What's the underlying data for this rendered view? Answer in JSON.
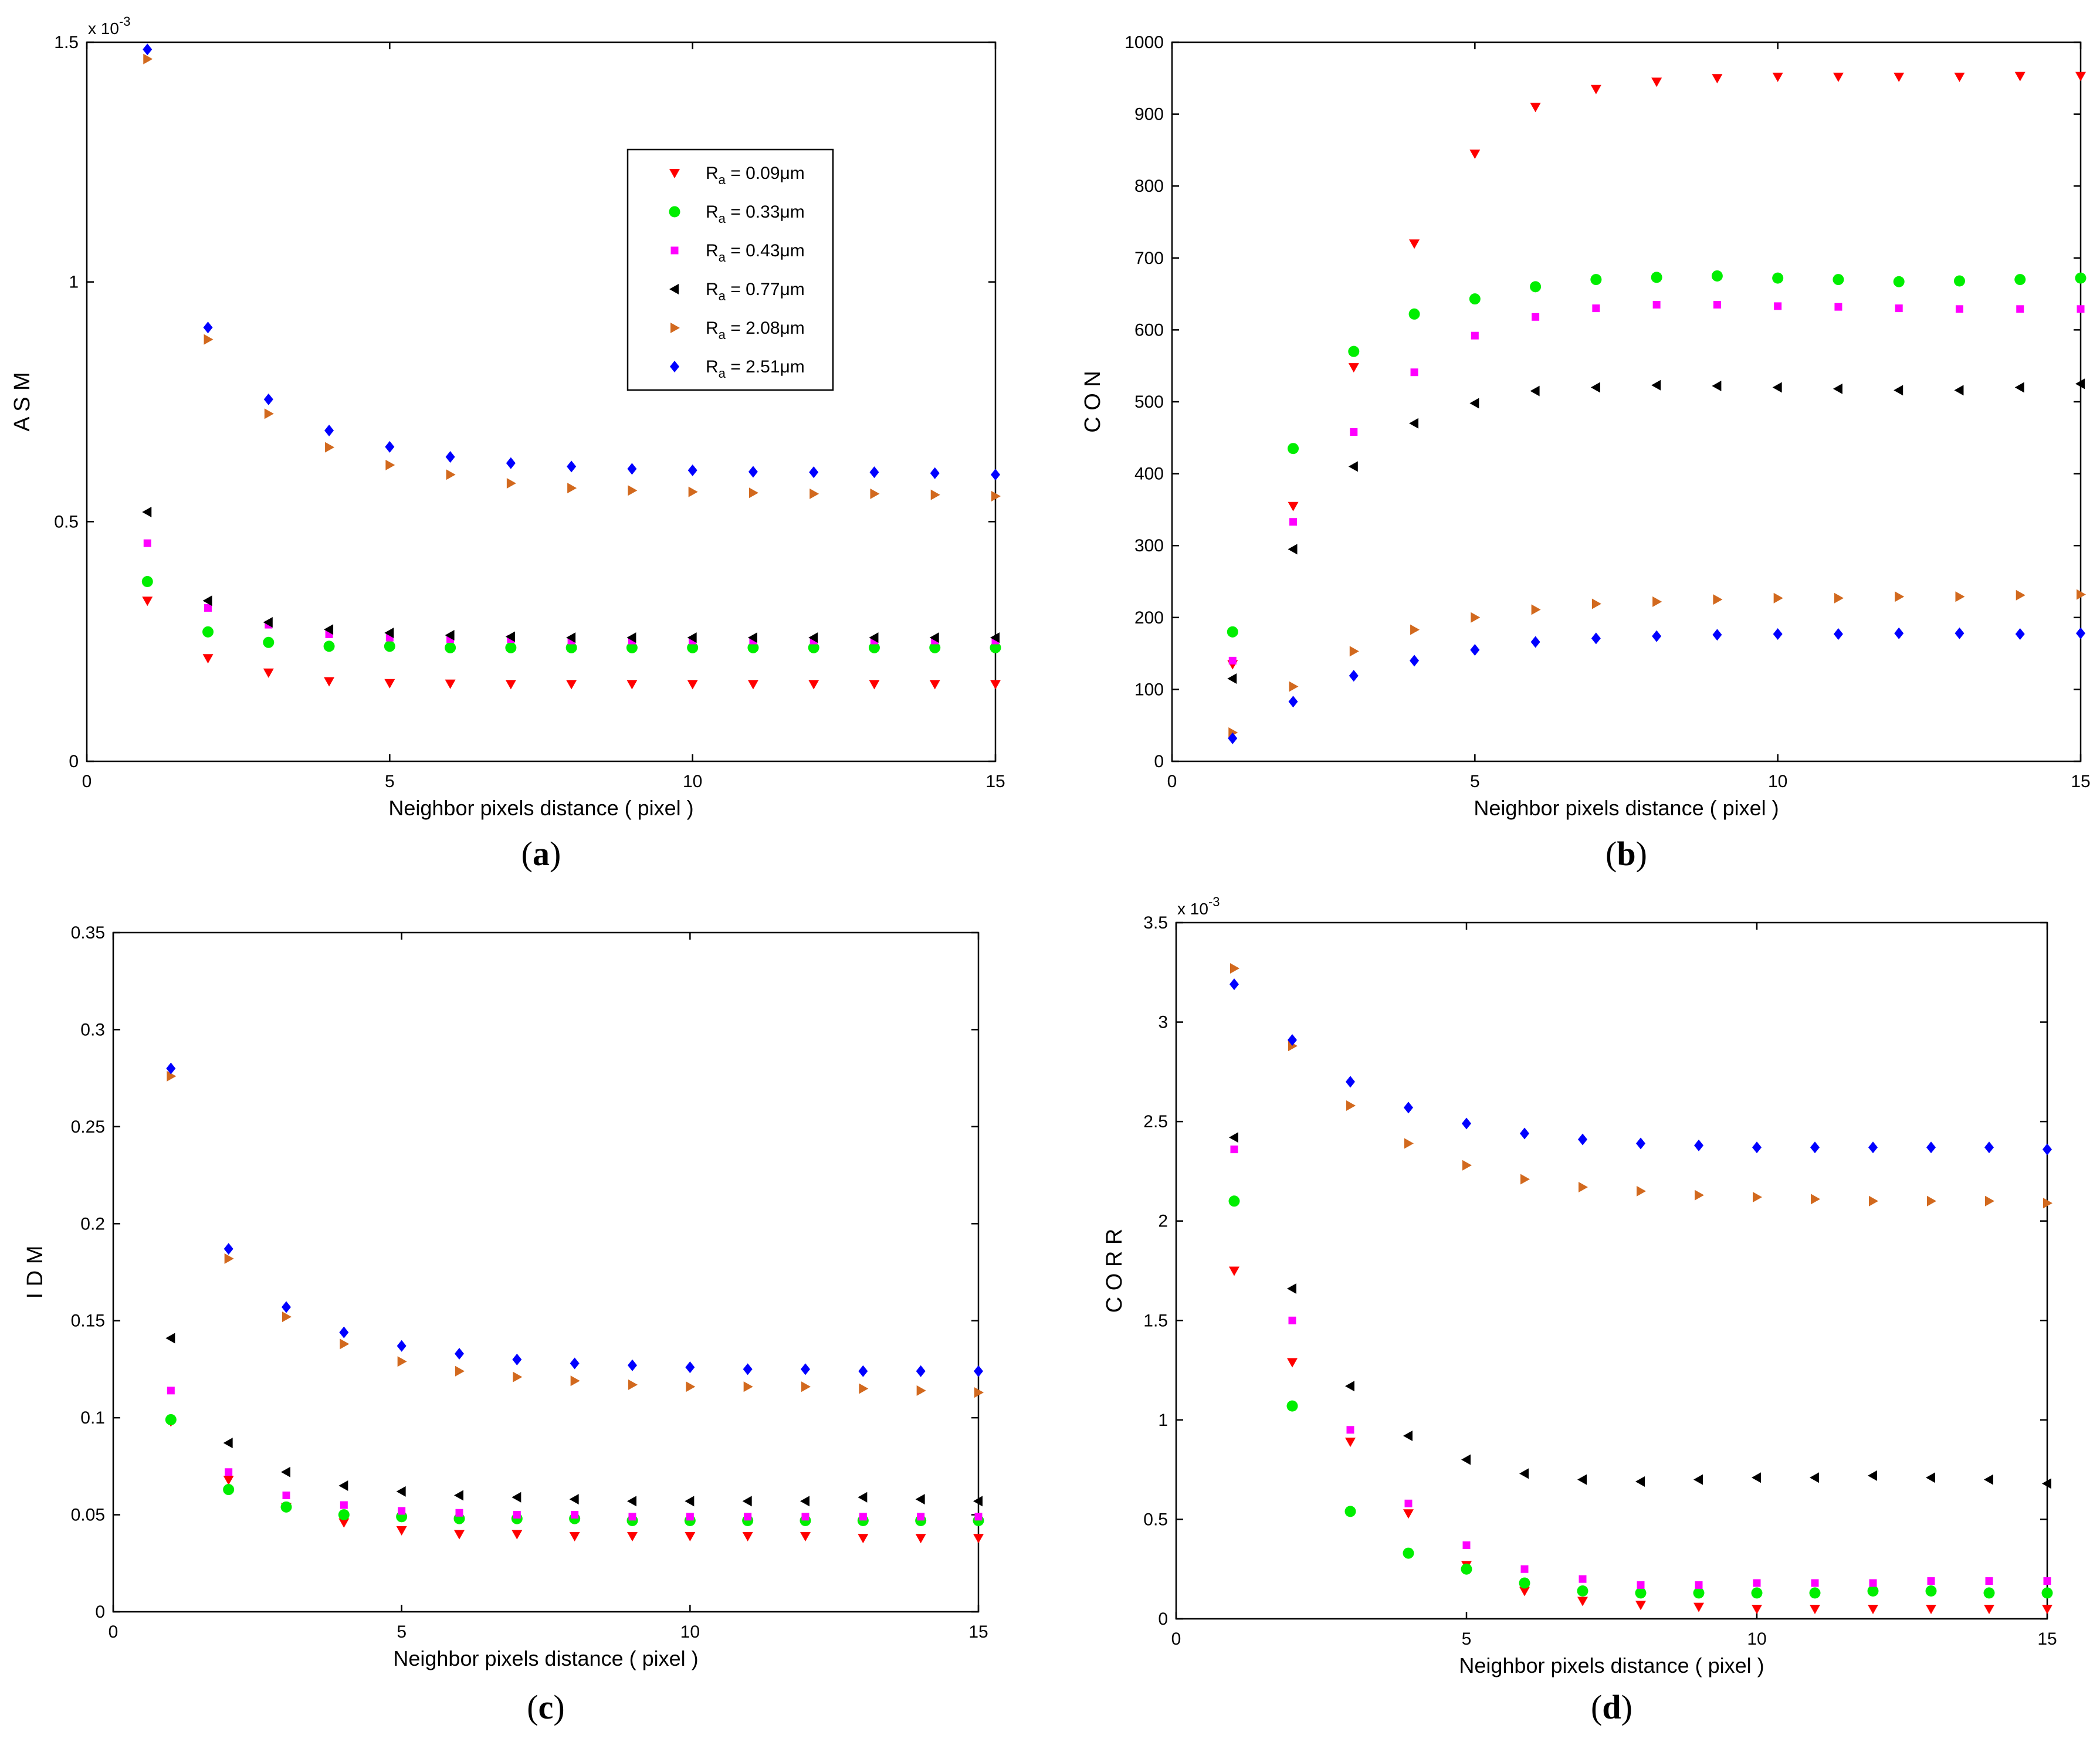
{
  "colors": {
    "Ra_0.09": "#ff0000",
    "Ra_0.33": "#00ee00",
    "Ra_0.43": "#ff00ff",
    "Ra_0.77": "#000000",
    "Ra_2.08": "#d2691e",
    "Ra_2.51": "#0000ff"
  },
  "chart_data": [
    {
      "id": "a",
      "type": "scatter",
      "panel_label": "a",
      "xlabel": "Neighbor pixels distance ( pixel )",
      "ylabel": "A S M",
      "exponent_label": "x 10",
      "exponent": "-3",
      "xlim": [
        0,
        15
      ],
      "ylim": [
        0,
        1.5
      ],
      "xticks": [
        "0",
        "5",
        "10",
        "15"
      ],
      "yticks": [
        "0",
        "0.5",
        "1",
        "1.5"
      ],
      "x": [
        1,
        2,
        3,
        4,
        5,
        6,
        7,
        8,
        9,
        10,
        11,
        12,
        13,
        14,
        15
      ],
      "legend": {
        "position": "upper-right",
        "entries": [
          {
            "prefix": "R",
            "sub": "a",
            "value": " = 0.09",
            "unit": "μm"
          },
          {
            "prefix": "R",
            "sub": "a",
            "value": " = 0.33",
            "unit": "μm"
          },
          {
            "prefix": "R",
            "sub": "a",
            "value": " = 0.43",
            "unit": "μm"
          },
          {
            "prefix": "R",
            "sub": "a",
            "value": " = 0.77",
            "unit": "μm"
          },
          {
            "prefix": "R",
            "sub": "a",
            "value": " = 2.08",
            "unit": "μm"
          },
          {
            "prefix": "R",
            "sub": "a",
            "value": " = 2.51",
            "unit": "μm"
          }
        ]
      },
      "series": [
        {
          "name": "Ra = 0.09μm",
          "marker": "triangle-down",
          "color": "#ff0000",
          "values": [
            0.335,
            0.215,
            0.185,
            0.167,
            0.163,
            0.162,
            0.161,
            0.161,
            0.161,
            0.161,
            0.161,
            0.161,
            0.161,
            0.161,
            0.161
          ]
        },
        {
          "name": "Ra = 0.33μm",
          "marker": "circle",
          "color": "#00ee00",
          "values": [
            0.375,
            0.27,
            0.248,
            0.24,
            0.24,
            0.237,
            0.237,
            0.237,
            0.237,
            0.237,
            0.237,
            0.237,
            0.237,
            0.237,
            0.237
          ]
        },
        {
          "name": "Ra = 0.43μm",
          "marker": "square",
          "color": "#ff00ff",
          "values": [
            0.455,
            0.32,
            0.285,
            0.265,
            0.258,
            0.255,
            0.255,
            0.252,
            0.252,
            0.252,
            0.252,
            0.252,
            0.252,
            0.252,
            0.252
          ]
        },
        {
          "name": "Ra = 0.77μm",
          "marker": "triangle-left",
          "color": "#000000",
          "values": [
            0.52,
            0.335,
            0.29,
            0.275,
            0.268,
            0.263,
            0.26,
            0.258,
            0.258,
            0.258,
            0.258,
            0.258,
            0.258,
            0.258,
            0.258
          ]
        },
        {
          "name": "Ra = 2.08μm",
          "marker": "triangle-right",
          "color": "#d2691e",
          "values": [
            1.465,
            0.88,
            0.725,
            0.655,
            0.618,
            0.598,
            0.58,
            0.57,
            0.565,
            0.562,
            0.56,
            0.558,
            0.558,
            0.556,
            0.553
          ]
        },
        {
          "name": "Ra = 2.51μm",
          "marker": "diamond",
          "color": "#0000ff",
          "values": [
            1.485,
            0.905,
            0.755,
            0.69,
            0.656,
            0.635,
            0.622,
            0.615,
            0.61,
            0.607,
            0.604,
            0.603,
            0.603,
            0.601,
            0.598
          ]
        }
      ]
    },
    {
      "id": "b",
      "type": "scatter",
      "panel_label": "b",
      "xlabel": "Neighbor pixels distance ( pixel )",
      "ylabel": "C O N",
      "xlim": [
        0,
        15
      ],
      "ylim": [
        0,
        1000
      ],
      "xticks": [
        "0",
        "5",
        "10",
        "15"
      ],
      "yticks": [
        "0",
        "100",
        "200",
        "300",
        "400",
        "500",
        "600",
        "700",
        "800",
        "900",
        "1000"
      ],
      "x": [
        1,
        2,
        3,
        4,
        5,
        6,
        7,
        8,
        9,
        10,
        11,
        12,
        13,
        14,
        15
      ],
      "series": [
        {
          "name": "Ra = 0.09μm",
          "marker": "triangle-down",
          "color": "#ff0000",
          "values": [
            135,
            355,
            548,
            720,
            845,
            910,
            935,
            945,
            950,
            952,
            952,
            952,
            952,
            953,
            953
          ]
        },
        {
          "name": "Ra = 0.33μm",
          "marker": "circle",
          "color": "#00ee00",
          "values": [
            180,
            435,
            570,
            622,
            643,
            660,
            670,
            673,
            675,
            672,
            670,
            667,
            668,
            670,
            672
          ]
        },
        {
          "name": "Ra = 0.43μm",
          "marker": "square",
          "color": "#ff00ff",
          "values": [
            140,
            333,
            458,
            541,
            592,
            618,
            630,
            635,
            635,
            633,
            632,
            630,
            629,
            629,
            629
          ]
        },
        {
          "name": "Ra = 0.77μm",
          "marker": "triangle-left",
          "color": "#000000",
          "values": [
            115,
            295,
            410,
            470,
            498,
            515,
            520,
            523,
            522,
            520,
            518,
            516,
            516,
            520,
            525
          ]
        },
        {
          "name": "Ra = 2.08μm",
          "marker": "triangle-right",
          "color": "#d2691e",
          "values": [
            40,
            104,
            153,
            183,
            200,
            211,
            219,
            222,
            225,
            227,
            227,
            229,
            229,
            231,
            232
          ]
        },
        {
          "name": "Ra = 2.51μm",
          "marker": "diamond",
          "color": "#0000ff",
          "values": [
            32,
            83,
            119,
            140,
            155,
            166,
            171,
            174,
            176,
            177,
            177,
            178,
            178,
            177,
            178
          ]
        }
      ]
    },
    {
      "id": "c",
      "type": "scatter",
      "panel_label": "c",
      "xlabel": "Neighbor pixels distance ( pixel )",
      "ylabel": "I D M",
      "xlim": [
        0,
        15
      ],
      "ylim": [
        0,
        0.35
      ],
      "xticks": [
        "0",
        "5",
        "10",
        "15"
      ],
      "yticks": [
        "0",
        "0.05",
        "0.1",
        "0.15",
        "0.2",
        "0.25",
        "0.3",
        "0.35"
      ],
      "x": [
        1,
        2,
        3,
        4,
        5,
        6,
        7,
        8,
        9,
        10,
        11,
        12,
        13,
        14,
        15
      ],
      "series": [
        {
          "name": "Ra = 0.09μm",
          "marker": "triangle-down",
          "color": "#ff0000",
          "values": [
            0.098,
            0.068,
            0.054,
            0.046,
            0.042,
            0.04,
            0.04,
            0.039,
            0.039,
            0.039,
            0.039,
            0.039,
            0.038,
            0.038,
            0.038
          ]
        },
        {
          "name": "Ra = 0.33μm",
          "marker": "circle",
          "color": "#00ee00",
          "values": [
            0.099,
            0.063,
            0.054,
            0.05,
            0.049,
            0.048,
            0.048,
            0.048,
            0.047,
            0.047,
            0.047,
            0.047,
            0.047,
            0.047,
            0.047
          ]
        },
        {
          "name": "Ra = 0.43μm",
          "marker": "square",
          "color": "#ff00ff",
          "values": [
            0.114,
            0.072,
            0.06,
            0.055,
            0.052,
            0.051,
            0.05,
            0.05,
            0.049,
            0.049,
            0.049,
            0.049,
            0.049,
            0.049,
            0.049
          ]
        },
        {
          "name": "Ra = 0.77μm",
          "marker": "triangle-left",
          "color": "#000000",
          "values": [
            0.141,
            0.087,
            0.072,
            0.065,
            0.062,
            0.06,
            0.059,
            0.058,
            0.057,
            0.057,
            0.057,
            0.057,
            0.059,
            0.058,
            0.057
          ]
        },
        {
          "name": "Ra = 2.08μm",
          "marker": "triangle-right",
          "color": "#d2691e",
          "values": [
            0.276,
            0.182,
            0.152,
            0.138,
            0.129,
            0.124,
            0.121,
            0.119,
            0.117,
            0.116,
            0.116,
            0.116,
            0.115,
            0.114,
            0.113
          ]
        },
        {
          "name": "Ra = 2.51μm",
          "marker": "diamond",
          "color": "#0000ff",
          "values": [
            0.28,
            0.187,
            0.157,
            0.144,
            0.137,
            0.133,
            0.13,
            0.128,
            0.127,
            0.126,
            0.125,
            0.125,
            0.124,
            0.124,
            0.124
          ]
        }
      ]
    },
    {
      "id": "d",
      "type": "scatter",
      "panel_label": "d",
      "xlabel": "Neighbor pixels distance ( pixel )",
      "ylabel": "C O R R",
      "exponent_label": "x 10",
      "exponent": "-3",
      "xlim": [
        0,
        15
      ],
      "ylim": [
        0,
        3.5
      ],
      "xticks": [
        "0",
        "5",
        "10",
        "15"
      ],
      "yticks": [
        "0",
        "0.5",
        "1",
        "1.5",
        "2",
        "2.5",
        "3",
        "3.5"
      ],
      "x": [
        1,
        2,
        3,
        4,
        5,
        6,
        7,
        8,
        9,
        10,
        11,
        12,
        13,
        14,
        15
      ],
      "series": [
        {
          "name": "Ra = 0.09μm",
          "marker": "triangle-down",
          "color": "#ff0000",
          "values": [
            1.75,
            1.29,
            0.89,
            0.53,
            0.27,
            0.14,
            0.09,
            0.07,
            0.06,
            0.05,
            0.05,
            0.05,
            0.05,
            0.05,
            0.05
          ]
        },
        {
          "name": "Ra = 0.33μm",
          "marker": "circle",
          "color": "#00ee00",
          "values": [
            2.1,
            1.07,
            0.54,
            0.33,
            0.25,
            0.18,
            0.14,
            0.13,
            0.13,
            0.13,
            0.13,
            0.14,
            0.14,
            0.13,
            0.13
          ]
        },
        {
          "name": "Ra = 0.43μm",
          "marker": "square",
          "color": "#ff00ff",
          "values": [
            2.36,
            1.5,
            0.95,
            0.58,
            0.37,
            0.25,
            0.2,
            0.17,
            0.17,
            0.18,
            0.18,
            0.18,
            0.19,
            0.19,
            0.19
          ]
        },
        {
          "name": "Ra = 0.77μm",
          "marker": "triangle-left",
          "color": "#000000",
          "values": [
            2.42,
            1.66,
            1.17,
            0.92,
            0.8,
            0.73,
            0.7,
            0.69,
            0.7,
            0.71,
            0.71,
            0.72,
            0.71,
            0.7,
            0.68
          ]
        },
        {
          "name": "Ra = 2.08μm",
          "marker": "triangle-right",
          "color": "#d2691e",
          "values": [
            3.27,
            2.88,
            2.58,
            2.39,
            2.28,
            2.21,
            2.17,
            2.15,
            2.13,
            2.12,
            2.11,
            2.1,
            2.1,
            2.1,
            2.09
          ]
        },
        {
          "name": "Ra = 2.51μm",
          "marker": "diamond",
          "color": "#0000ff",
          "values": [
            3.19,
            2.91,
            2.7,
            2.57,
            2.49,
            2.44,
            2.41,
            2.39,
            2.38,
            2.37,
            2.37,
            2.37,
            2.37,
            2.37,
            2.36
          ]
        }
      ]
    }
  ]
}
